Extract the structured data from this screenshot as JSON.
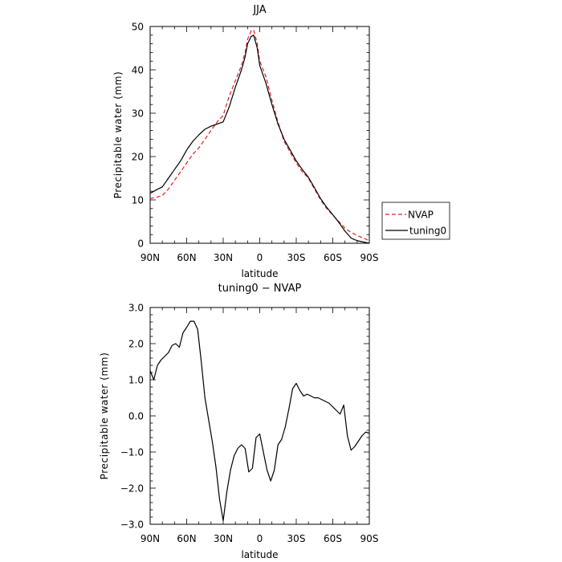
{
  "chart_data": [
    {
      "type": "line",
      "title": "JJA",
      "xlabel": "latitude",
      "ylabel": "Precipitable water (mm)",
      "xlim": [
        90,
        -90
      ],
      "ylim": [
        0,
        50
      ],
      "x_ticks": [
        90,
        60,
        30,
        0,
        -30,
        -60,
        -90
      ],
      "x_tick_labels": [
        "90N",
        "60N",
        "30N",
        "0",
        "30S",
        "60S",
        "90S"
      ],
      "y_ticks": [
        0,
        10,
        20,
        30,
        40,
        50
      ],
      "y_tick_labels": [
        "0",
        "10",
        "20",
        "30",
        "40",
        "50"
      ],
      "legend_position": "right",
      "grid": false,
      "series": [
        {
          "name": "NVAP",
          "color": "#e02020",
          "dash": "dashed",
          "x": [
            90,
            85,
            80,
            75,
            70,
            65,
            60,
            55,
            50,
            45,
            40,
            35,
            30,
            25,
            20,
            15,
            12,
            10,
            7,
            5,
            2,
            0,
            -5,
            -10,
            -15,
            -20,
            -25,
            -30,
            -35,
            -40,
            -45,
            -50,
            -55,
            -60,
            -65,
            -70,
            -75,
            -80,
            -85,
            -90
          ],
          "values": [
            10.3,
            10.6,
            11.0,
            12.5,
            14.5,
            16.5,
            18.5,
            20.5,
            22.0,
            24.0,
            26.0,
            28.0,
            29.5,
            34.0,
            37.5,
            41.0,
            44.0,
            47.0,
            49.0,
            49.2,
            46.0,
            42.0,
            38.5,
            33.0,
            28.0,
            23.5,
            21.0,
            18.5,
            16.5,
            15.0,
            12.5,
            10.0,
            8.0,
            6.5,
            5.0,
            3.5,
            2.5,
            1.8,
            1.2,
            0.6
          ]
        },
        {
          "name": "tuning0",
          "color": "#000000",
          "dash": "solid",
          "x": [
            90,
            85,
            80,
            75,
            70,
            65,
            60,
            55,
            50,
            45,
            40,
            35,
            30,
            25,
            20,
            15,
            12,
            10,
            7,
            5,
            2,
            0,
            -5,
            -10,
            -15,
            -20,
            -25,
            -30,
            -35,
            -40,
            -45,
            -50,
            -55,
            -60,
            -65,
            -70,
            -75,
            -80,
            -85,
            -90
          ],
          "values": [
            11.5,
            12.3,
            13.0,
            15.0,
            17.0,
            19.0,
            21.5,
            23.5,
            25.0,
            26.3,
            27.0,
            27.5,
            28.0,
            31.5,
            36.0,
            40.0,
            43.0,
            46.0,
            47.7,
            48.0,
            45.0,
            41.0,
            37.0,
            32.0,
            27.5,
            24.0,
            21.5,
            19.0,
            17.0,
            15.2,
            12.8,
            10.3,
            8.3,
            6.6,
            4.8,
            2.8,
            1.2,
            0.6,
            0.3,
            0.0
          ]
        }
      ]
    },
    {
      "type": "line",
      "title": "tuning0 − NVAP",
      "xlabel": "latitude",
      "ylabel": "Precipitable water (mm)",
      "xlim": [
        90,
        -90
      ],
      "ylim": [
        -3,
        3
      ],
      "x_ticks": [
        90,
        60,
        30,
        0,
        -30,
        -60,
        -90
      ],
      "x_tick_labels": [
        "90N",
        "60N",
        "30N",
        "0",
        "30S",
        "60S",
        "90S"
      ],
      "y_ticks": [
        -3,
        -2,
        -1,
        0,
        1,
        2,
        3
      ],
      "y_tick_labels": [
        "−3.0",
        "−2.0",
        "−1.0",
        "0.0",
        "1.0",
        "2.0",
        "3.0"
      ],
      "grid": false,
      "series": [
        {
          "color": "#000000",
          "dash": "solid",
          "x": [
            90,
            87,
            84,
            81,
            78,
            75,
            72,
            69,
            66,
            63,
            60,
            57,
            54,
            51,
            48,
            45,
            42,
            39,
            36,
            33,
            30,
            27,
            24,
            21,
            18,
            15,
            12,
            9,
            6,
            3,
            0,
            -3,
            -6,
            -9,
            -12,
            -15,
            -18,
            -21,
            -24,
            -27,
            -30,
            -33,
            -36,
            -39,
            -42,
            -45,
            -48,
            -51,
            -54,
            -57,
            -60,
            -63,
            -66,
            -69,
            -72,
            -75,
            -78,
            -81,
            -84,
            -87,
            -90
          ],
          "values": [
            1.25,
            1.0,
            1.4,
            1.55,
            1.65,
            1.75,
            1.95,
            2.0,
            1.9,
            2.3,
            2.45,
            2.62,
            2.62,
            2.4,
            1.5,
            0.5,
            -0.1,
            -0.7,
            -1.4,
            -2.3,
            -2.9,
            -2.1,
            -1.5,
            -1.1,
            -0.9,
            -0.8,
            -0.9,
            -1.55,
            -1.45,
            -0.6,
            -0.5,
            -1.0,
            -1.5,
            -1.8,
            -1.5,
            -0.8,
            -0.65,
            -0.3,
            0.2,
            0.75,
            0.9,
            0.7,
            0.55,
            0.6,
            0.55,
            0.5,
            0.5,
            0.45,
            0.4,
            0.35,
            0.25,
            0.15,
            0.05,
            0.3,
            -0.55,
            -0.95,
            -0.85,
            -0.7,
            -0.55,
            -0.45,
            -0.48
          ]
        }
      ]
    }
  ]
}
